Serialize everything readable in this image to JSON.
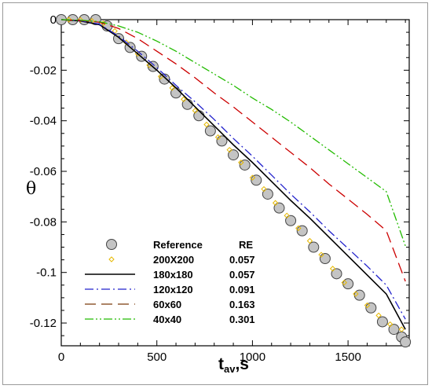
{
  "chart_data": {
    "type": "line",
    "xlabel_main": "t",
    "xlabel_sub": "av",
    "xlabel_tail": ",s",
    "ylabel": "θ",
    "xlim": [
      0,
      1820
    ],
    "ylim": [
      -0.129,
      0
    ],
    "xticks": [
      0,
      500,
      1000,
      1500
    ],
    "xtick_labels": [
      "0",
      "500",
      "1000",
      "1500"
    ],
    "yticks": [
      0,
      -0.02,
      -0.04,
      -0.06,
      -0.08,
      -0.1,
      -0.12
    ],
    "ytick_labels": [
      "0",
      "-0.02",
      "-0.04",
      "-0.06",
      "-0.08",
      "-0.1",
      "-0.12"
    ],
    "legend_header": {
      "name": "Reference",
      "value": "RE"
    },
    "legend_position": "bottom-left",
    "series": [
      {
        "name": "Reference",
        "re": "",
        "style": "marker-circle",
        "color": "#c8c8c8",
        "x": [
          0,
          60,
          120,
          180,
          240,
          300,
          360,
          420,
          480,
          540,
          600,
          660,
          720,
          780,
          840,
          900,
          960,
          1020,
          1080,
          1140,
          1200,
          1260,
          1320,
          1380,
          1440,
          1500,
          1560,
          1620,
          1680,
          1740,
          1780,
          1800
        ],
        "y": [
          0,
          0,
          0,
          0,
          -0.0025,
          -0.0075,
          -0.011,
          -0.0145,
          -0.0185,
          -0.0235,
          -0.029,
          -0.0335,
          -0.038,
          -0.044,
          -0.048,
          -0.0535,
          -0.0575,
          -0.0635,
          -0.069,
          -0.0745,
          -0.0795,
          -0.0835,
          -0.09,
          -0.0945,
          -0.1005,
          -0.1045,
          -0.109,
          -0.114,
          -0.1195,
          -0.1225,
          -0.1255,
          -0.1275
        ]
      },
      {
        "name": "200X200",
        "re": "0.057",
        "style": "marker-diamond",
        "color": "#e6b800",
        "x": [
          40,
          100,
          160,
          220,
          280,
          340,
          400,
          460,
          520,
          580,
          640,
          700,
          760,
          820,
          880,
          940,
          1000,
          1060,
          1120,
          1180,
          1240,
          1300,
          1360,
          1420,
          1480,
          1540,
          1600,
          1660,
          1720,
          1780
        ],
        "y": [
          0,
          -0.0001,
          -0.0005,
          -0.0015,
          -0.0045,
          -0.009,
          -0.0135,
          -0.018,
          -0.0225,
          -0.027,
          -0.0315,
          -0.036,
          -0.0415,
          -0.0465,
          -0.0515,
          -0.0565,
          -0.0625,
          -0.067,
          -0.0725,
          -0.0775,
          -0.0825,
          -0.0875,
          -0.093,
          -0.0985,
          -0.104,
          -0.1085,
          -0.113,
          -0.117,
          -0.1205,
          -0.1225
        ]
      },
      {
        "name": "180x180",
        "re": "0.057",
        "style": "solid",
        "color": "#000000",
        "x": [
          0,
          100,
          200,
          300,
          400,
          500,
          600,
          700,
          800,
          900,
          1000,
          1100,
          1200,
          1300,
          1400,
          1500,
          1600,
          1700,
          1800
        ],
        "y": [
          0,
          -0.0005,
          -0.002,
          -0.007,
          -0.0135,
          -0.02,
          -0.027,
          -0.0345,
          -0.042,
          -0.0495,
          -0.0565,
          -0.064,
          -0.0715,
          -0.0785,
          -0.086,
          -0.0935,
          -0.101,
          -0.1085,
          -0.1225
        ]
      },
      {
        "name": "120x120",
        "re": "0.091",
        "style": "dashdot",
        "color": "#2222cc",
        "x": [
          0,
          100,
          200,
          300,
          400,
          500,
          600,
          700,
          800,
          900,
          1000,
          1100,
          1200,
          1300,
          1400,
          1500,
          1600,
          1700,
          1800
        ],
        "y": [
          0,
          -0.0004,
          -0.0018,
          -0.0065,
          -0.0125,
          -0.019,
          -0.026,
          -0.0325,
          -0.0395,
          -0.047,
          -0.054,
          -0.0615,
          -0.069,
          -0.076,
          -0.0835,
          -0.0905,
          -0.0975,
          -0.105,
          -0.1185
        ]
      },
      {
        "name": "60x60",
        "re": "0.163",
        "style": "longdash",
        "color": "#cc0000",
        "x": [
          0,
          100,
          200,
          300,
          400,
          500,
          600,
          700,
          800,
          900,
          1000,
          1100,
          1200,
          1300,
          1400,
          1500,
          1600,
          1700,
          1800
        ],
        "y": [
          0,
          -0.0003,
          -0.001,
          -0.0035,
          -0.0075,
          -0.0125,
          -0.0175,
          -0.023,
          -0.029,
          -0.0345,
          -0.0405,
          -0.0465,
          -0.0525,
          -0.0585,
          -0.065,
          -0.071,
          -0.077,
          -0.0835,
          -0.1035
        ]
      },
      {
        "name": "40x40",
        "re": "0.301",
        "style": "dashdotdot",
        "color": "#22bb00",
        "x": [
          0,
          100,
          200,
          300,
          400,
          500,
          600,
          700,
          800,
          900,
          1000,
          1100,
          1200,
          1300,
          1400,
          1500,
          1600,
          1700,
          1800
        ],
        "y": [
          0,
          -0.0002,
          -0.0008,
          -0.0025,
          -0.005,
          -0.0085,
          -0.0125,
          -0.017,
          -0.0215,
          -0.026,
          -0.031,
          -0.0355,
          -0.0405,
          -0.046,
          -0.0515,
          -0.057,
          -0.0625,
          -0.068,
          -0.0895
        ]
      }
    ]
  },
  "legend_extra_colors": {
    "60x60": "#7a3b0a"
  }
}
